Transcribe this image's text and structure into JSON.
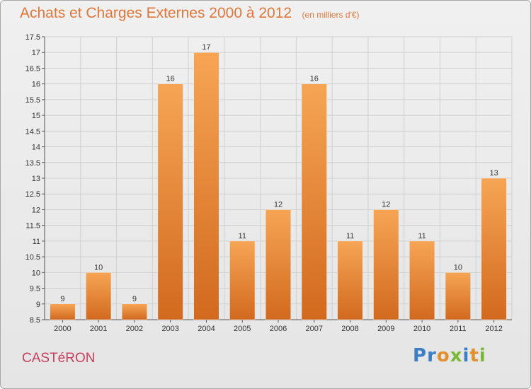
{
  "header": {
    "title": "Achats et Charges Externes 2000 à 2012",
    "subtitle": "(en milliers d'€)"
  },
  "footer": {
    "commune": "CASTéRON",
    "logo_letters": [
      {
        "ch": "P",
        "color": "#3a7fc4"
      },
      {
        "ch": "r",
        "color": "#3a7fc4"
      },
      {
        "ch": "o",
        "color": "#e0902c"
      },
      {
        "ch": "x",
        "color": "#7ab83a"
      },
      {
        "ch": "i",
        "color": "#3a7fc4"
      },
      {
        "ch": "t",
        "color": "#e0902c"
      },
      {
        "ch": "i",
        "color": "#7ab83a"
      }
    ]
  },
  "colors": {
    "bar_top": "#f6a555",
    "bar_bottom": "#d2691e",
    "title": "#e0773a",
    "commune": "#c8405e"
  },
  "chart_data": {
    "type": "bar",
    "title": "Achats et Charges Externes 2000 à 2012",
    "subtitle": "(en milliers d'€)",
    "categories": [
      "2000",
      "2001",
      "2002",
      "2003",
      "2004",
      "2005",
      "2006",
      "2007",
      "2008",
      "2009",
      "2010",
      "2011",
      "2012"
    ],
    "values": [
      9,
      10,
      9,
      16,
      17,
      11,
      12,
      16,
      11,
      12,
      11,
      10,
      13
    ],
    "ylim": [
      8.5,
      17.5
    ],
    "yticks": [
      "8.5",
      "9",
      "9.5",
      "10",
      "10.5",
      "11",
      "11.5",
      "12",
      "12.5",
      "13",
      "13.5",
      "14",
      "14.5",
      "15",
      "15.5",
      "16",
      "16.5",
      "17",
      "17.5"
    ],
    "grid": true,
    "xlabel": "",
    "ylabel": ""
  }
}
